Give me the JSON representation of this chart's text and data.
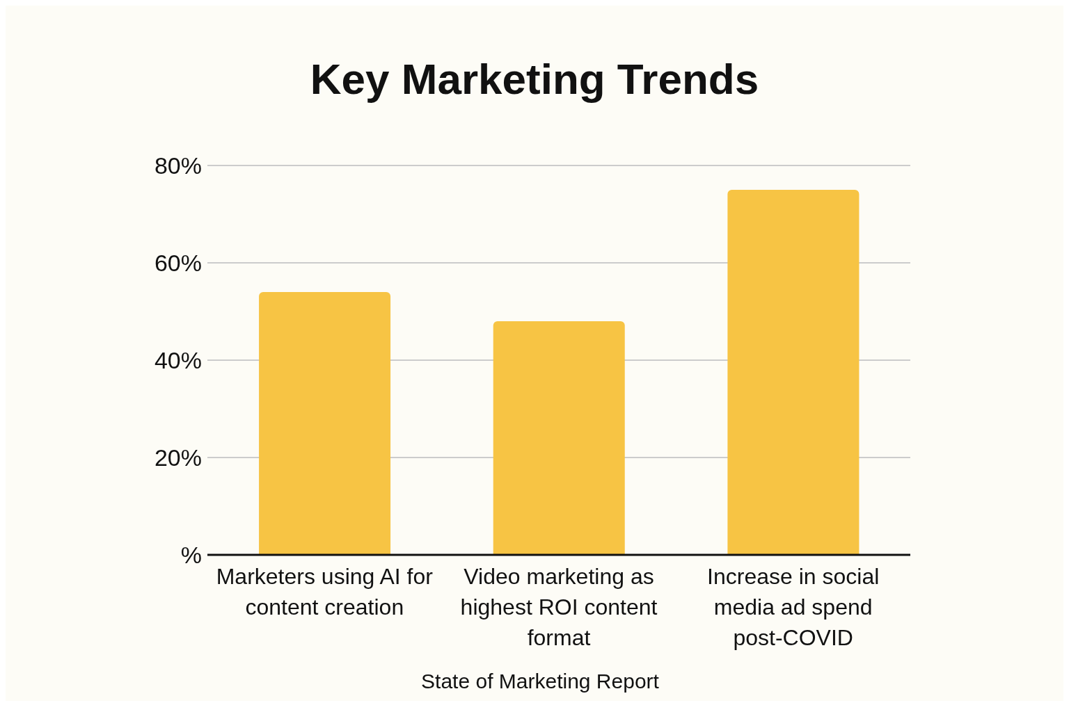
{
  "chart_data": {
    "type": "bar",
    "title": "Key Marketing Trends",
    "categories": [
      "Marketers using AI for content creation",
      "Video marketing as highest ROI content format",
      "Increase in social media ad spend post-COVID"
    ],
    "values": [
      54,
      48,
      75
    ],
    "color": "#f7c444",
    "ylim": [
      0,
      80
    ],
    "yticks": [
      {
        "value": 0,
        "label": "%"
      },
      {
        "value": 20,
        "label": "20%"
      },
      {
        "value": 40,
        "label": "40%"
      },
      {
        "value": 60,
        "label": "60%"
      },
      {
        "value": 80,
        "label": "80%"
      }
    ],
    "grid": "y",
    "annotations": [
      "State of Marketing Report"
    ]
  }
}
